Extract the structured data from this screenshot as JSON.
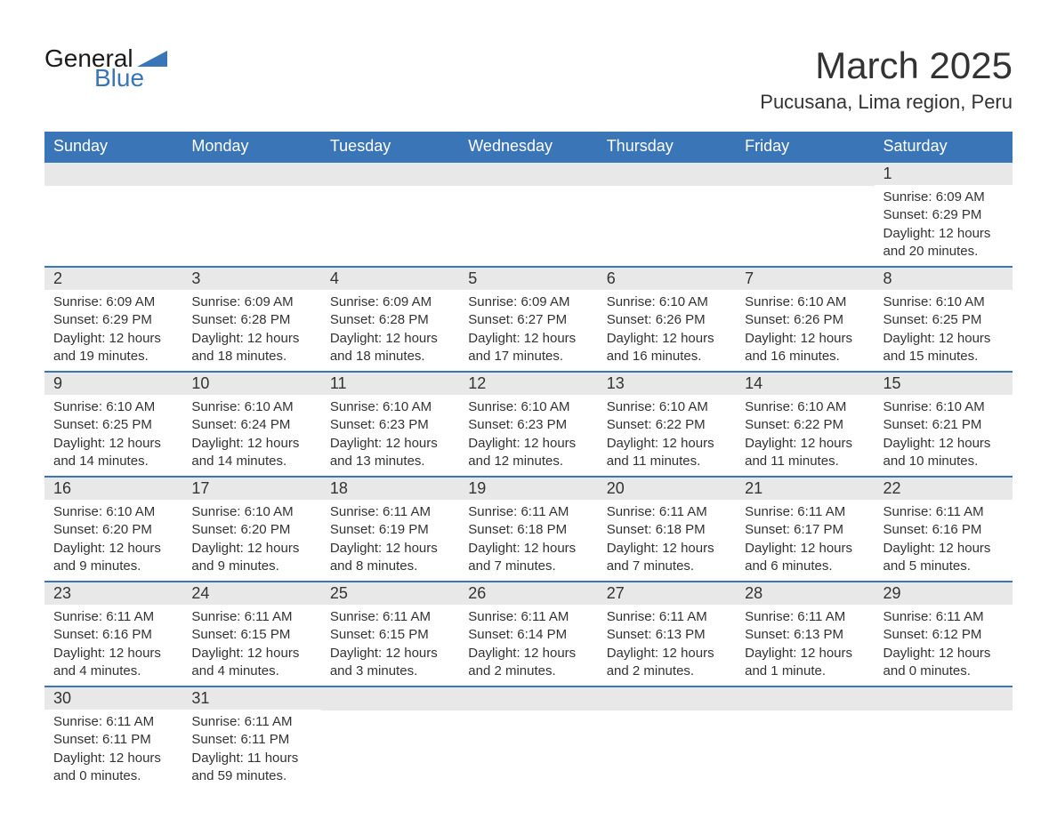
{
  "logo": {
    "text1": "General",
    "text2": "Blue",
    "icon_color": "#3a75b8"
  },
  "header": {
    "month_title": "March 2025",
    "location": "Pucusana, Lima region, Peru"
  },
  "calendar": {
    "header_bg": "#3a75b8",
    "header_fg": "#ffffff",
    "border_color": "#3a75b8",
    "daynum_bg": "#e8e8e8",
    "text_color": "#333333",
    "columns": [
      "Sunday",
      "Monday",
      "Tuesday",
      "Wednesday",
      "Thursday",
      "Friday",
      "Saturday"
    ],
    "weeks": [
      [
        null,
        null,
        null,
        null,
        null,
        null,
        {
          "day": "1",
          "sunrise": "Sunrise: 6:09 AM",
          "sunset": "Sunset: 6:29 PM",
          "daylight": "Daylight: 12 hours and 20 minutes."
        }
      ],
      [
        {
          "day": "2",
          "sunrise": "Sunrise: 6:09 AM",
          "sunset": "Sunset: 6:29 PM",
          "daylight": "Daylight: 12 hours and 19 minutes."
        },
        {
          "day": "3",
          "sunrise": "Sunrise: 6:09 AM",
          "sunset": "Sunset: 6:28 PM",
          "daylight": "Daylight: 12 hours and 18 minutes."
        },
        {
          "day": "4",
          "sunrise": "Sunrise: 6:09 AM",
          "sunset": "Sunset: 6:28 PM",
          "daylight": "Daylight: 12 hours and 18 minutes."
        },
        {
          "day": "5",
          "sunrise": "Sunrise: 6:09 AM",
          "sunset": "Sunset: 6:27 PM",
          "daylight": "Daylight: 12 hours and 17 minutes."
        },
        {
          "day": "6",
          "sunrise": "Sunrise: 6:10 AM",
          "sunset": "Sunset: 6:26 PM",
          "daylight": "Daylight: 12 hours and 16 minutes."
        },
        {
          "day": "7",
          "sunrise": "Sunrise: 6:10 AM",
          "sunset": "Sunset: 6:26 PM",
          "daylight": "Daylight: 12 hours and 16 minutes."
        },
        {
          "day": "8",
          "sunrise": "Sunrise: 6:10 AM",
          "sunset": "Sunset: 6:25 PM",
          "daylight": "Daylight: 12 hours and 15 minutes."
        }
      ],
      [
        {
          "day": "9",
          "sunrise": "Sunrise: 6:10 AM",
          "sunset": "Sunset: 6:25 PM",
          "daylight": "Daylight: 12 hours and 14 minutes."
        },
        {
          "day": "10",
          "sunrise": "Sunrise: 6:10 AM",
          "sunset": "Sunset: 6:24 PM",
          "daylight": "Daylight: 12 hours and 14 minutes."
        },
        {
          "day": "11",
          "sunrise": "Sunrise: 6:10 AM",
          "sunset": "Sunset: 6:23 PM",
          "daylight": "Daylight: 12 hours and 13 minutes."
        },
        {
          "day": "12",
          "sunrise": "Sunrise: 6:10 AM",
          "sunset": "Sunset: 6:23 PM",
          "daylight": "Daylight: 12 hours and 12 minutes."
        },
        {
          "day": "13",
          "sunrise": "Sunrise: 6:10 AM",
          "sunset": "Sunset: 6:22 PM",
          "daylight": "Daylight: 12 hours and 11 minutes."
        },
        {
          "day": "14",
          "sunrise": "Sunrise: 6:10 AM",
          "sunset": "Sunset: 6:22 PM",
          "daylight": "Daylight: 12 hours and 11 minutes."
        },
        {
          "day": "15",
          "sunrise": "Sunrise: 6:10 AM",
          "sunset": "Sunset: 6:21 PM",
          "daylight": "Daylight: 12 hours and 10 minutes."
        }
      ],
      [
        {
          "day": "16",
          "sunrise": "Sunrise: 6:10 AM",
          "sunset": "Sunset: 6:20 PM",
          "daylight": "Daylight: 12 hours and 9 minutes."
        },
        {
          "day": "17",
          "sunrise": "Sunrise: 6:10 AM",
          "sunset": "Sunset: 6:20 PM",
          "daylight": "Daylight: 12 hours and 9 minutes."
        },
        {
          "day": "18",
          "sunrise": "Sunrise: 6:11 AM",
          "sunset": "Sunset: 6:19 PM",
          "daylight": "Daylight: 12 hours and 8 minutes."
        },
        {
          "day": "19",
          "sunrise": "Sunrise: 6:11 AM",
          "sunset": "Sunset: 6:18 PM",
          "daylight": "Daylight: 12 hours and 7 minutes."
        },
        {
          "day": "20",
          "sunrise": "Sunrise: 6:11 AM",
          "sunset": "Sunset: 6:18 PM",
          "daylight": "Daylight: 12 hours and 7 minutes."
        },
        {
          "day": "21",
          "sunrise": "Sunrise: 6:11 AM",
          "sunset": "Sunset: 6:17 PM",
          "daylight": "Daylight: 12 hours and 6 minutes."
        },
        {
          "day": "22",
          "sunrise": "Sunrise: 6:11 AM",
          "sunset": "Sunset: 6:16 PM",
          "daylight": "Daylight: 12 hours and 5 minutes."
        }
      ],
      [
        {
          "day": "23",
          "sunrise": "Sunrise: 6:11 AM",
          "sunset": "Sunset: 6:16 PM",
          "daylight": "Daylight: 12 hours and 4 minutes."
        },
        {
          "day": "24",
          "sunrise": "Sunrise: 6:11 AM",
          "sunset": "Sunset: 6:15 PM",
          "daylight": "Daylight: 12 hours and 4 minutes."
        },
        {
          "day": "25",
          "sunrise": "Sunrise: 6:11 AM",
          "sunset": "Sunset: 6:15 PM",
          "daylight": "Daylight: 12 hours and 3 minutes."
        },
        {
          "day": "26",
          "sunrise": "Sunrise: 6:11 AM",
          "sunset": "Sunset: 6:14 PM",
          "daylight": "Daylight: 12 hours and 2 minutes."
        },
        {
          "day": "27",
          "sunrise": "Sunrise: 6:11 AM",
          "sunset": "Sunset: 6:13 PM",
          "daylight": "Daylight: 12 hours and 2 minutes."
        },
        {
          "day": "28",
          "sunrise": "Sunrise: 6:11 AM",
          "sunset": "Sunset: 6:13 PM",
          "daylight": "Daylight: 12 hours and 1 minute."
        },
        {
          "day": "29",
          "sunrise": "Sunrise: 6:11 AM",
          "sunset": "Sunset: 6:12 PM",
          "daylight": "Daylight: 12 hours and 0 minutes."
        }
      ],
      [
        {
          "day": "30",
          "sunrise": "Sunrise: 6:11 AM",
          "sunset": "Sunset: 6:11 PM",
          "daylight": "Daylight: 12 hours and 0 minutes."
        },
        {
          "day": "31",
          "sunrise": "Sunrise: 6:11 AM",
          "sunset": "Sunset: 6:11 PM",
          "daylight": "Daylight: 11 hours and 59 minutes."
        },
        null,
        null,
        null,
        null,
        null
      ]
    ]
  }
}
